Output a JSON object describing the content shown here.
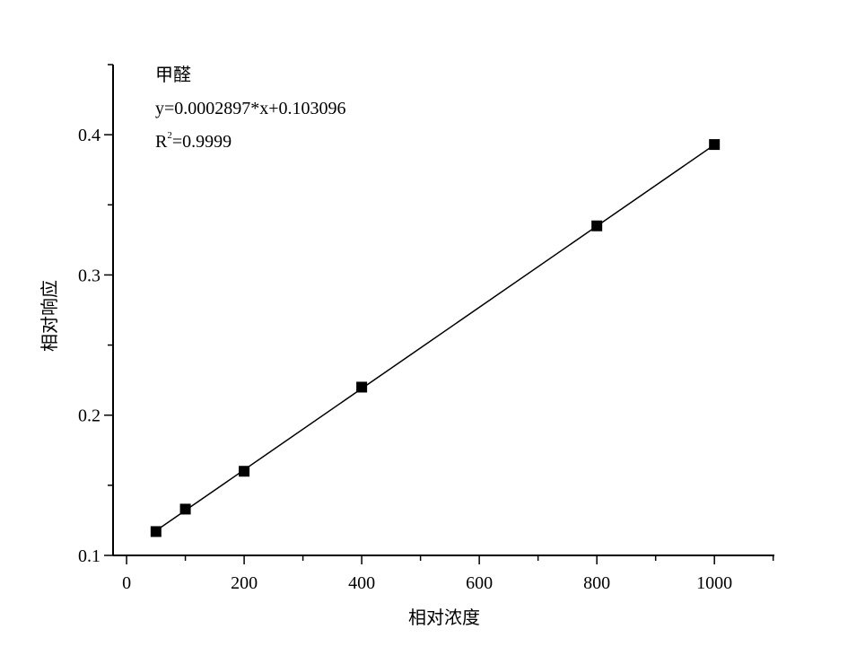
{
  "chart_data": {
    "type": "scatter",
    "xlabel": "相对浓度",
    "ylabel": "相对响应",
    "xlim": [
      -23,
      1102
    ],
    "ylim": [
      0.1,
      0.45
    ],
    "xticks": [
      0,
      200,
      400,
      600,
      800,
      1000
    ],
    "xticks_minor_step": 100,
    "yticks": [
      0.1,
      0.2,
      0.3,
      0.4
    ],
    "yticks_minor_step": 0.05,
    "ytick_labels": [
      "0.1",
      "0.2",
      "0.3",
      "0.4"
    ],
    "grid": false,
    "marker": "square",
    "color": "#000000",
    "points": [
      {
        "x": 50,
        "y": 0.117
      },
      {
        "x": 100,
        "y": 0.133
      },
      {
        "x": 200,
        "y": 0.16
      },
      {
        "x": 400,
        "y": 0.22
      },
      {
        "x": 800,
        "y": 0.335
      },
      {
        "x": 1000,
        "y": 0.393
      }
    ],
    "fit": {
      "slope": 0.0002897,
      "intercept": 0.103096,
      "x_range": [
        50,
        1000
      ]
    },
    "annotation": {
      "compound": "甲醛",
      "equation": "y=0.0002897*x+0.103096",
      "r2_prefix": "R",
      "r2_sup": "2",
      "r2_value": "=0.9999"
    }
  }
}
